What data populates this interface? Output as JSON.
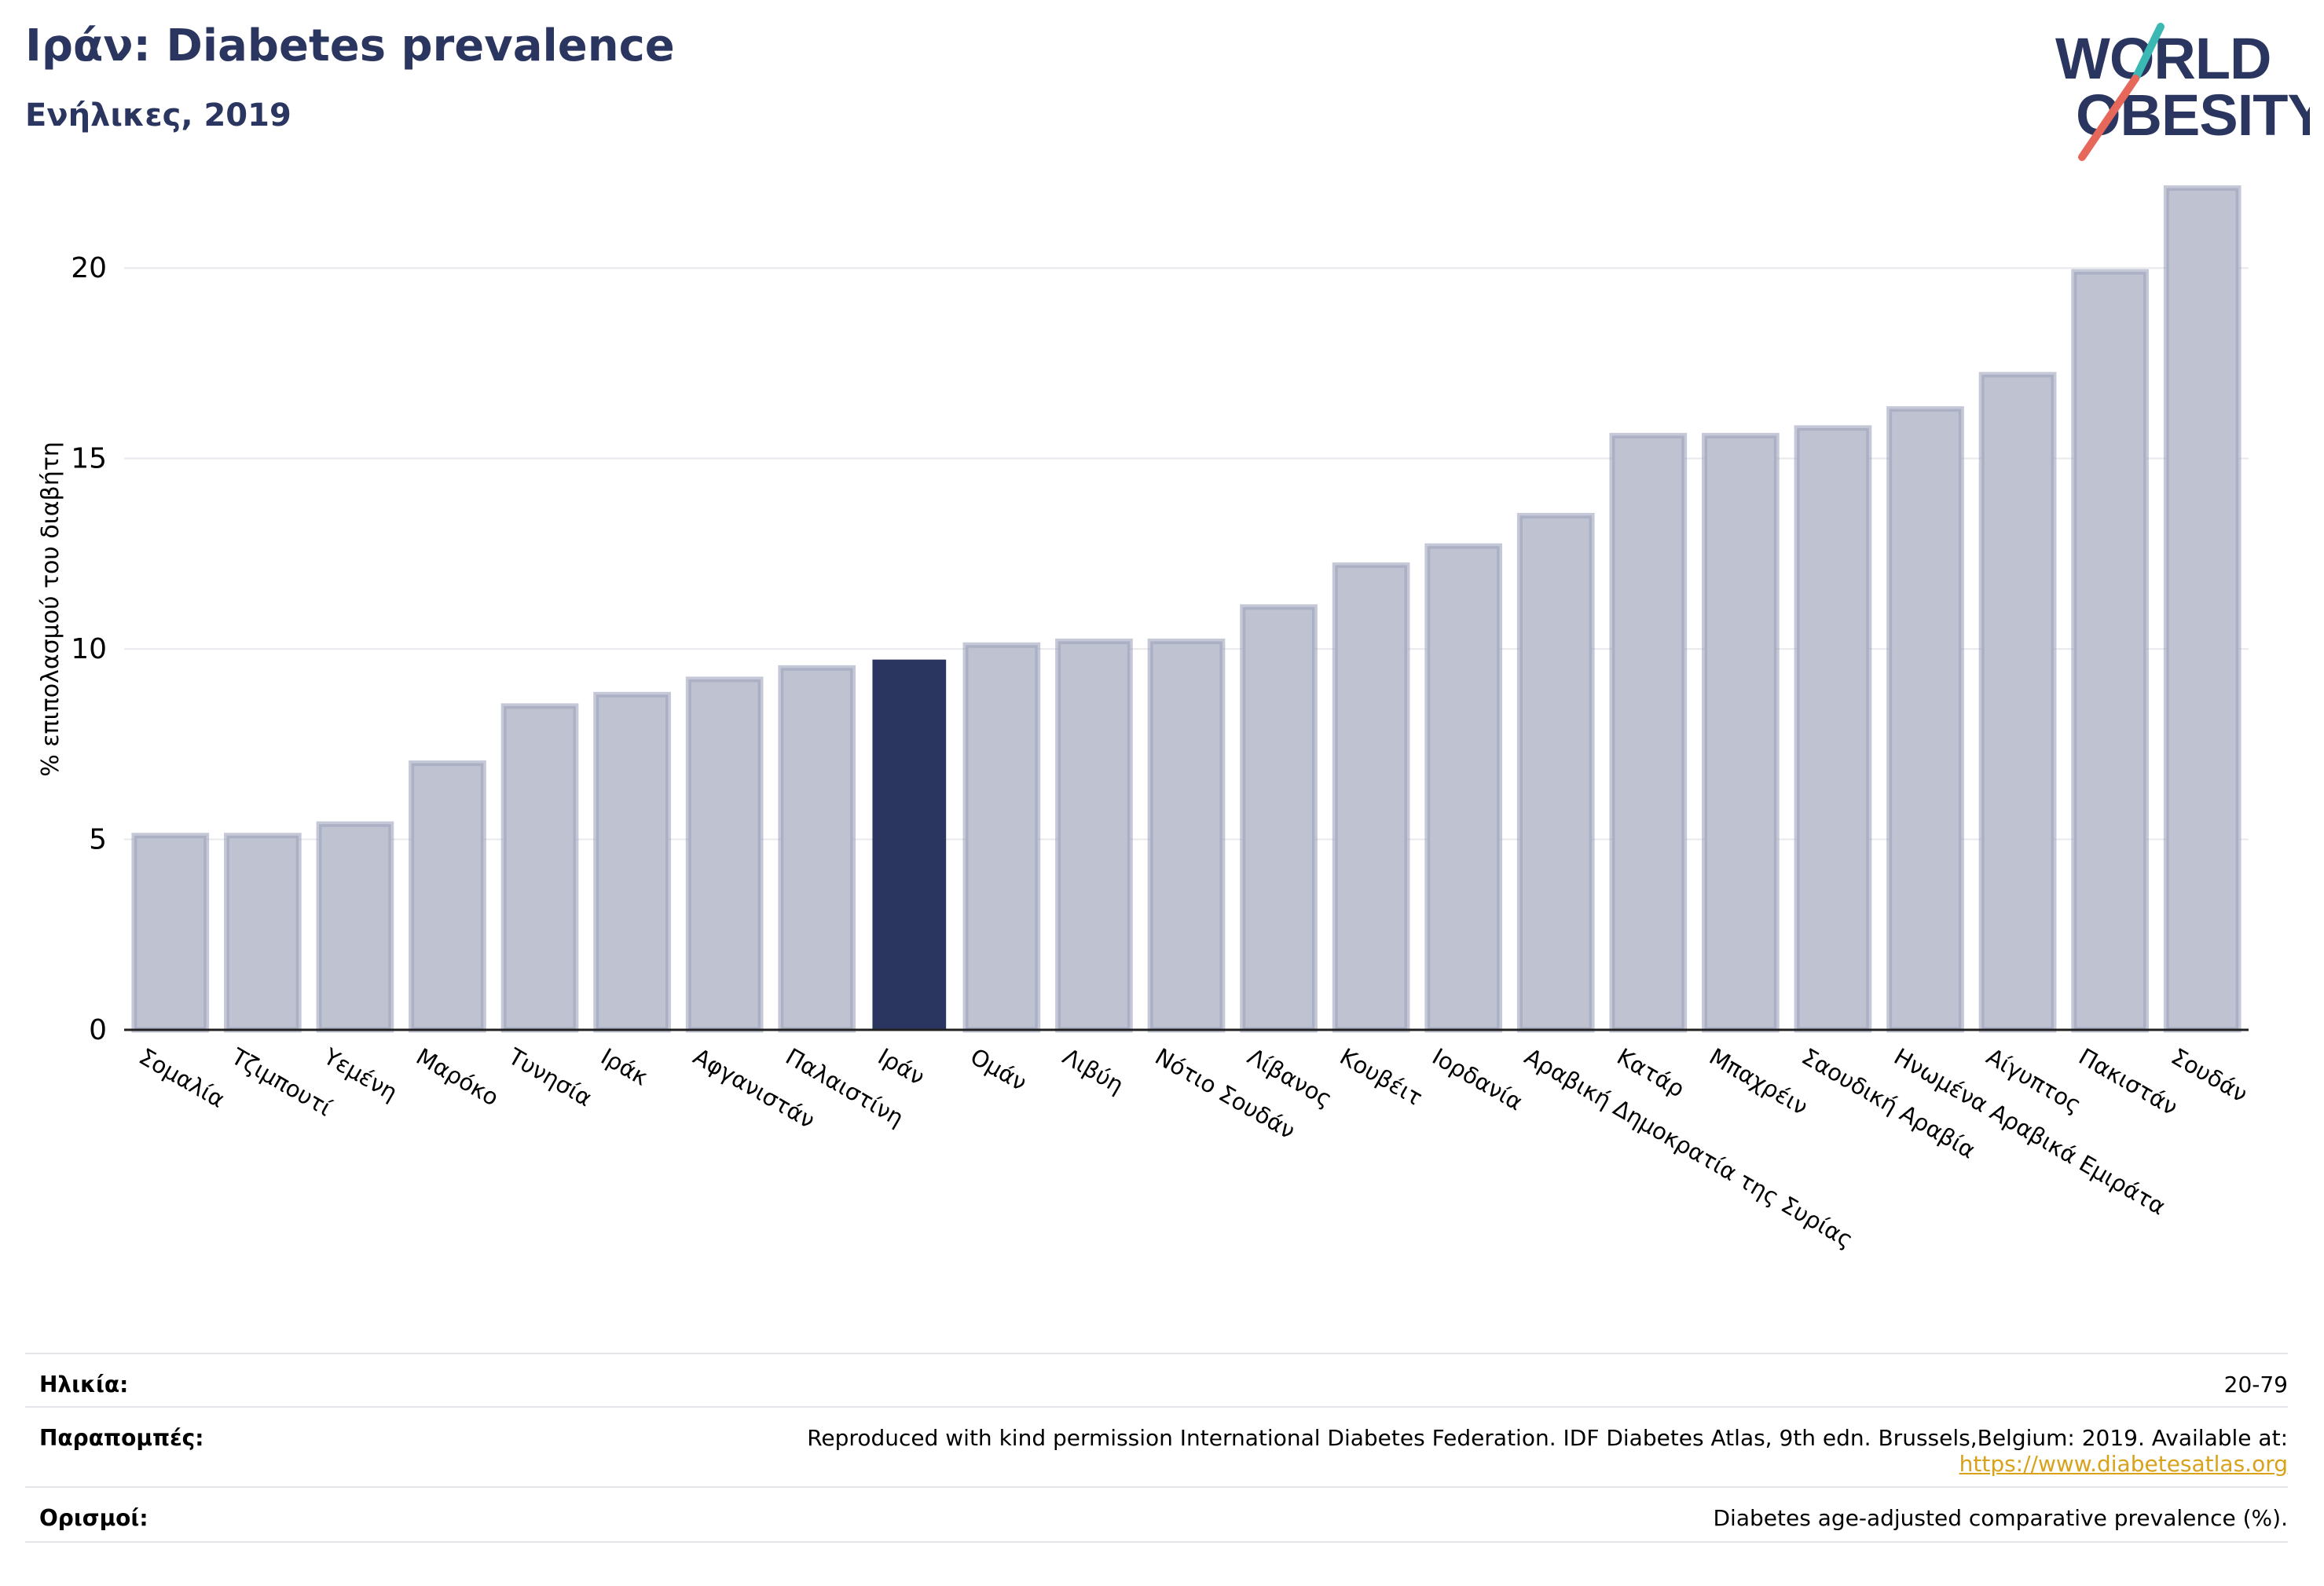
{
  "header": {
    "title": "Ιράν: Diabetes prevalence",
    "subtitle": "Ενήλικες, 2019"
  },
  "logo": {
    "line1": "WORLD",
    "line2": "OBESITY"
  },
  "colors": {
    "highlight": "#2a365f",
    "bar": "#bfc3d1",
    "bar_stroke": "#9ea3bd",
    "grid": "#e8e8ee",
    "title": "#2a365f",
    "logo_teal": "#3bb8b3",
    "logo_coral": "#e5685a",
    "link": "#d9a21b"
  },
  "chart_data": {
    "type": "bar",
    "ylabel": "% επιπολασμού του διαβήτη",
    "ylim": [
      0,
      22.5
    ],
    "yticks": [
      0,
      5,
      10,
      15,
      20
    ],
    "grid": true,
    "highlight_category": "Ιράν",
    "categories": [
      "Σομαλία",
      "Τζιμπουτί",
      "Υεμένη",
      "Μαρόκο",
      "Τυνησία",
      "Ιράκ",
      "Αφγανιστάν",
      "Παλαιστίνη",
      "Ιράν",
      "Ομάν",
      "Λιβύη",
      "Νότιο Σουδάν",
      "Λίβανος",
      "Κουβέιτ",
      "Ιορδανία",
      "Αραβική Δημοκρατία της Συρίας",
      "Κατάρ",
      "Μπαχρέιν",
      "Σαουδική Αραβία",
      "Ηνωμένα Αραβικά Εμιράτα",
      "Αίγυπτος",
      "Πακιστάν",
      "Σουδάν"
    ],
    "values": [
      5.1,
      5.1,
      5.4,
      7.0,
      8.5,
      8.8,
      9.2,
      9.5,
      9.7,
      10.1,
      10.2,
      10.2,
      11.1,
      12.2,
      12.7,
      13.5,
      15.6,
      15.6,
      15.8,
      16.3,
      17.2,
      19.9,
      22.1
    ]
  },
  "footer": {
    "age_label": "Ηλικία:",
    "age_value": "20-79",
    "refs_label": "Παραπομπές:",
    "refs_text": "Reproduced with kind permission International Diabetes Federation. IDF Diabetes Atlas, 9th edn. Brussels,Belgium: 2019. Available at:",
    "refs_link": "https://www.diabetesatlas.org",
    "defs_label": "Ορισμοί:",
    "defs_value": "Diabetes age-adjusted comparative prevalence (%)."
  }
}
